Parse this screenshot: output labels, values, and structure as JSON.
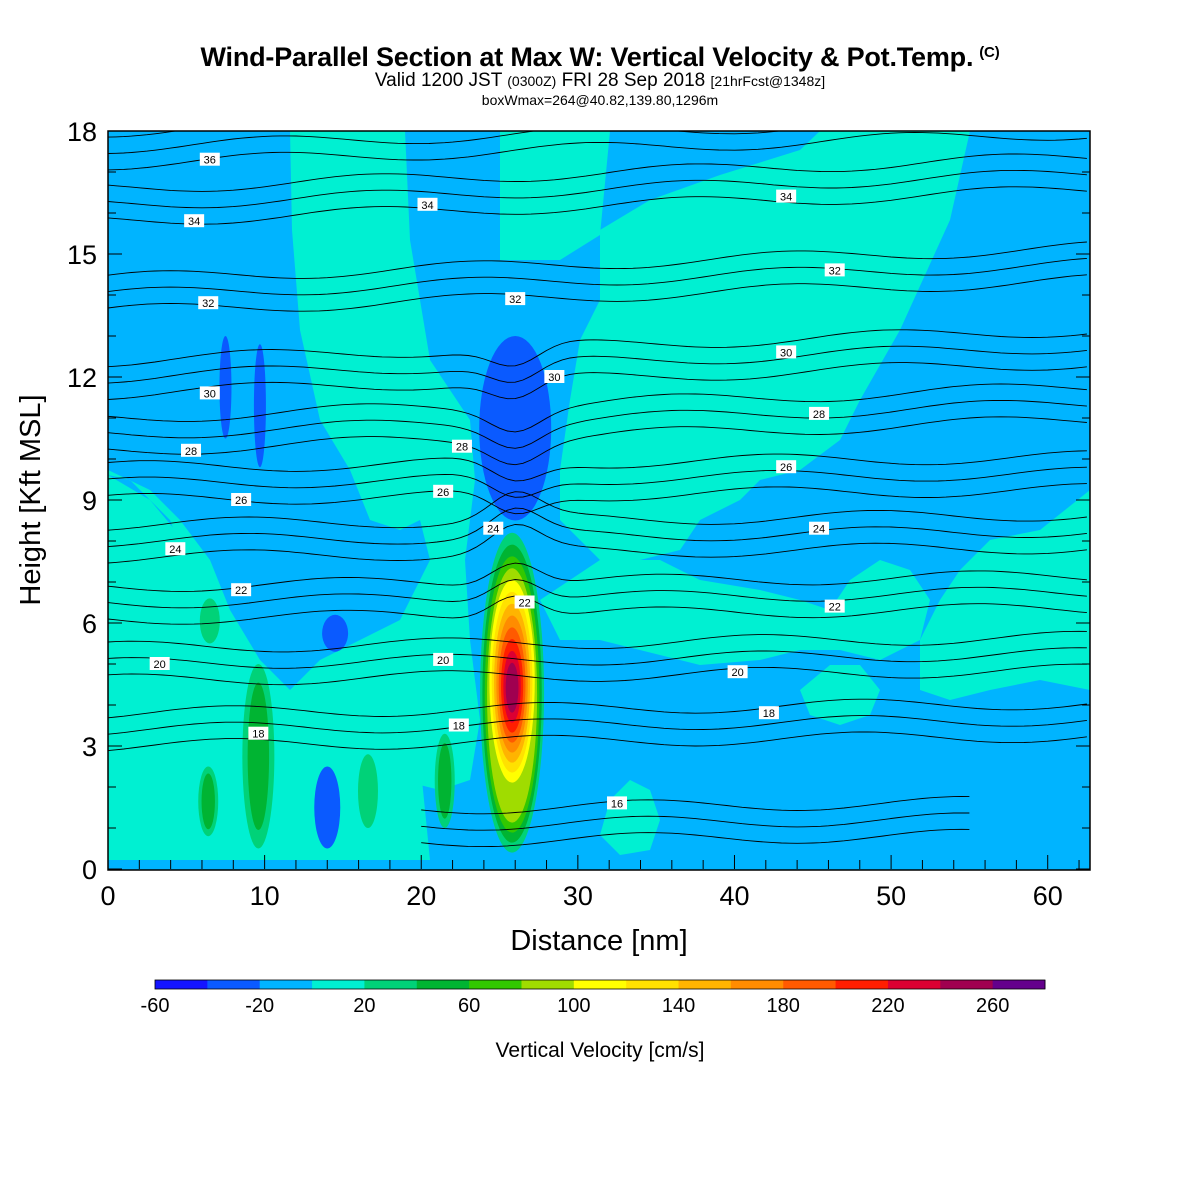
{
  "title": {
    "main": "Wind-Parallel Section at Max W: Vertical Velocity & Pot.Temp.",
    "copyright": "(C)",
    "valid_prefix": "Valid 1200 JST",
    "valid_utc": "(0300Z)",
    "valid_date": "FRI 28 Sep 2018",
    "forecast_info": "[21hrFcst@1348z]",
    "box_info": "boxWmax=264@40.82,139.80,1296m"
  },
  "chart_data": {
    "type": "heatmap",
    "xlabel": "Distance [nm]",
    "ylabel": "Height [Kft MSL]",
    "xlim": [
      0,
      62.7
    ],
    "ylim": [
      0,
      18
    ],
    "xticks": [
      0,
      10,
      20,
      30,
      40,
      50,
      60
    ],
    "yticks": [
      0,
      3,
      6,
      9,
      12,
      15,
      18
    ],
    "colorbar": {
      "title": "Vertical Velocity [cm/s]",
      "levels": [
        -60,
        -40,
        -20,
        0,
        20,
        40,
        60,
        80,
        100,
        120,
        140,
        160,
        180,
        200,
        220,
        240,
        260,
        280
      ],
      "tick_labels": [
        "-60",
        "-20",
        "20",
        "60",
        "100",
        "140",
        "180",
        "220",
        "260"
      ],
      "colors": [
        "#1414ff",
        "#0a5aff",
        "#00b4ff",
        "#00f0d2",
        "#00d278",
        "#00b432",
        "#32c800",
        "#a0dc00",
        "#ffff00",
        "#ffe100",
        "#ffb400",
        "#ff8c00",
        "#ff5a00",
        "#ff1e00",
        "#dc0032",
        "#a00050",
        "#64008c"
      ]
    },
    "background_level_color": "#00b4ff",
    "velocity_features": [
      {
        "kind": "updraft-core",
        "x": 25.8,
        "y_range": [
          0.4,
          8.2
        ],
        "w_max": 264
      },
      {
        "kind": "downdraft",
        "x": 26.0,
        "y_range": [
          8.5,
          13.0
        ],
        "w_min": -40
      },
      {
        "kind": "downdraft",
        "x": 14.5,
        "y_range": [
          5.3,
          6.2
        ],
        "w_min": -40
      },
      {
        "kind": "downdraft",
        "x": 14.0,
        "y_range": [
          0.5,
          2.5
        ],
        "w_min": -40
      },
      {
        "kind": "downdraft",
        "x": 7.5,
        "y_range": [
          10.5,
          13.0
        ],
        "w_min": -40
      },
      {
        "kind": "downdraft",
        "x": 9.7,
        "y_range": [
          9.8,
          12.8
        ],
        "w_min": -40
      },
      {
        "kind": "weak-updraft",
        "x": 9.6,
        "y_range": [
          0.5,
          5.0
        ],
        "w_max": 50
      },
      {
        "kind": "weak-updraft",
        "x": 6.4,
        "y_range": [
          0.8,
          2.5
        ],
        "w_max": 40
      },
      {
        "kind": "weak-updraft",
        "x": 6.5,
        "y_range": [
          5.5,
          6.6
        ],
        "w_max": 30
      },
      {
        "kind": "weak-updraft",
        "x": 21.5,
        "y_range": [
          1.0,
          3.3
        ],
        "w_max": 40
      },
      {
        "kind": "weak-updraft",
        "x": 16.6,
        "y_range": [
          1.0,
          2.8
        ],
        "w_max": 30
      }
    ],
    "theta_contours": {
      "levels_C": [
        16,
        18,
        20,
        22,
        24,
        26,
        28,
        30,
        32,
        34,
        36
      ],
      "labels": [
        {
          "text": "36",
          "x": 6.5,
          "y": 17.3
        },
        {
          "text": "34",
          "x": 5.5,
          "y": 15.8
        },
        {
          "text": "34",
          "x": 20.4,
          "y": 16.2
        },
        {
          "text": "34",
          "x": 43.3,
          "y": 16.4
        },
        {
          "text": "32",
          "x": 6.4,
          "y": 13.8
        },
        {
          "text": "32",
          "x": 26.0,
          "y": 13.9
        },
        {
          "text": "32",
          "x": 46.4,
          "y": 14.6
        },
        {
          "text": "30",
          "x": 6.5,
          "y": 11.6
        },
        {
          "text": "30",
          "x": 28.5,
          "y": 12.0
        },
        {
          "text": "30",
          "x": 43.3,
          "y": 12.6
        },
        {
          "text": "28",
          "x": 5.3,
          "y": 10.2
        },
        {
          "text": "28",
          "x": 22.6,
          "y": 10.3
        },
        {
          "text": "28",
          "x": 45.4,
          "y": 11.1
        },
        {
          "text": "26",
          "x": 8.5,
          "y": 9.0
        },
        {
          "text": "26",
          "x": 21.4,
          "y": 9.2
        },
        {
          "text": "26",
          "x": 43.3,
          "y": 9.8
        },
        {
          "text": "24",
          "x": 4.3,
          "y": 7.8
        },
        {
          "text": "24",
          "x": 24.6,
          "y": 8.3
        },
        {
          "text": "24",
          "x": 45.4,
          "y": 8.3
        },
        {
          "text": "22",
          "x": 8.5,
          "y": 6.8
        },
        {
          "text": "22",
          "x": 26.6,
          "y": 6.5
        },
        {
          "text": "22",
          "x": 46.4,
          "y": 6.4
        },
        {
          "text": "20",
          "x": 3.3,
          "y": 5.0
        },
        {
          "text": "20",
          "x": 21.4,
          "y": 5.1
        },
        {
          "text": "20",
          "x": 40.2,
          "y": 4.8
        },
        {
          "text": "18",
          "x": 9.6,
          "y": 3.3
        },
        {
          "text": "18",
          "x": 22.4,
          "y": 3.5
        },
        {
          "text": "18",
          "x": 42.2,
          "y": 3.8
        },
        {
          "text": "16",
          "x": 32.5,
          "y": 1.6
        }
      ]
    }
  }
}
